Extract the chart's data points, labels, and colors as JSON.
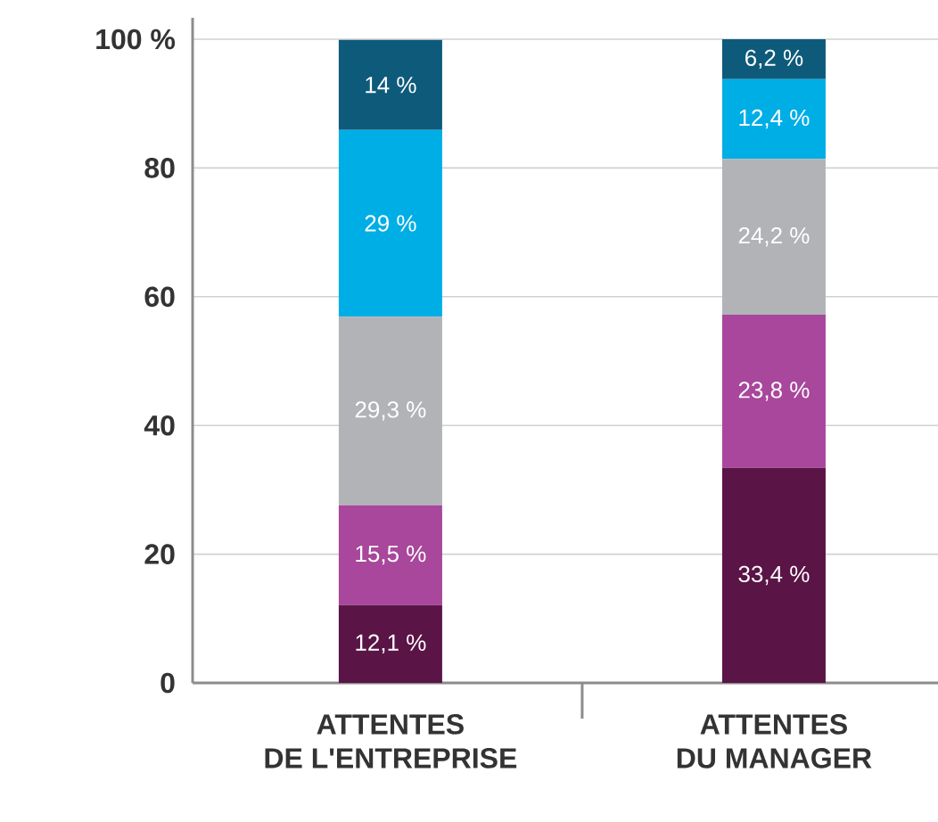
{
  "chart_data": {
    "type": "bar",
    "stacked": true,
    "categories": [
      "ATTENTES\nDE L'ENTREPRISE",
      "ATTENTES\nDU MANAGER"
    ],
    "series": [
      {
        "color": "#5a1446",
        "values": [
          12.1,
          33.4
        ],
        "value_labels": [
          "12,1 %",
          "33,4 %"
        ]
      },
      {
        "color": "#a8479b",
        "values": [
          15.5,
          23.8
        ],
        "value_labels": [
          "15,5 %",
          "23,8 %"
        ]
      },
      {
        "color": "#b1b3b6",
        "values": [
          29.3,
          24.2
        ],
        "value_labels": [
          "29,3 %",
          "24,2 %"
        ]
      },
      {
        "color": "#00aee6",
        "values": [
          29,
          12.4
        ],
        "value_labels": [
          "29 %",
          "12,4 %"
        ]
      },
      {
        "color": "#0e5a7b",
        "values": [
          14,
          6.2
        ],
        "value_labels": [
          "14 %",
          "6,2 %"
        ]
      }
    ],
    "ylim": [
      0,
      100
    ],
    "yticks": [
      0,
      20,
      40,
      60,
      80,
      {
        "value": 100,
        "label": "100 %"
      }
    ],
    "grid": "y"
  }
}
